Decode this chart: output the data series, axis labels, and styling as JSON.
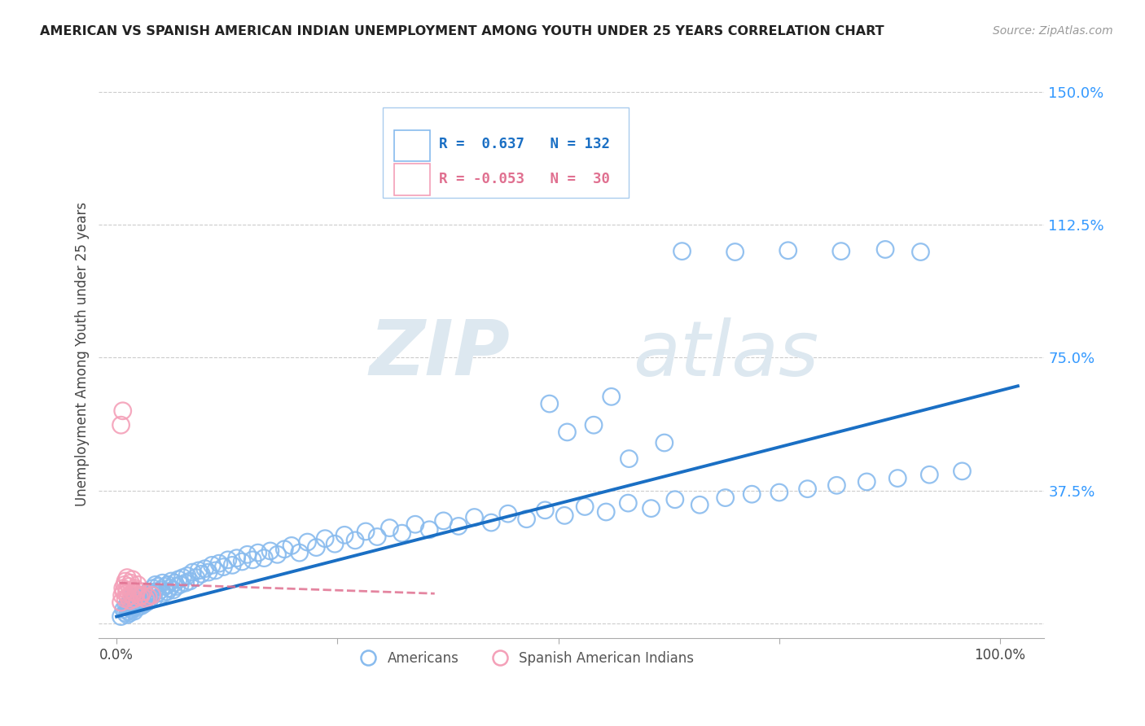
{
  "title": "AMERICAN VS SPANISH AMERICAN INDIAN UNEMPLOYMENT AMONG YOUTH UNDER 25 YEARS CORRELATION CHART",
  "source": "Source: ZipAtlas.com",
  "ylabel": "Unemployment Among Youth under 25 years",
  "watermark_zip": "ZIP",
  "watermark_atlas": "atlas",
  "blue_color": "#88bbee",
  "pink_color": "#f4a0b8",
  "line_blue": "#1a6fc4",
  "line_pink": "#e07090",
  "tick_color": "#3399ff",
  "ytick_values": [
    0.0,
    0.375,
    0.75,
    1.125,
    1.5
  ],
  "ytick_labels": [
    "",
    "37.5%",
    "75.0%",
    "112.5%",
    "150.0%"
  ],
  "xlim": [
    -0.02,
    1.05
  ],
  "ylim": [
    -0.04,
    1.56
  ],
  "blue_line_x": [
    0.0,
    1.02
  ],
  "blue_line_y": [
    0.02,
    0.67
  ],
  "pink_line_x": [
    0.003,
    0.36
  ],
  "pink_line_y": [
    0.115,
    0.085
  ],
  "am_x": [
    0.005,
    0.008,
    0.01,
    0.011,
    0.012,
    0.013,
    0.013,
    0.014,
    0.015,
    0.015,
    0.016,
    0.017,
    0.018,
    0.018,
    0.019,
    0.02,
    0.02,
    0.021,
    0.022,
    0.022,
    0.023,
    0.024,
    0.025,
    0.026,
    0.027,
    0.028,
    0.028,
    0.029,
    0.03,
    0.031,
    0.032,
    0.033,
    0.034,
    0.035,
    0.036,
    0.037,
    0.038,
    0.04,
    0.041,
    0.042,
    0.043,
    0.044,
    0.046,
    0.047,
    0.048,
    0.05,
    0.052,
    0.053,
    0.055,
    0.057,
    0.058,
    0.06,
    0.062,
    0.064,
    0.066,
    0.068,
    0.07,
    0.072,
    0.075,
    0.078,
    0.08,
    0.083,
    0.086,
    0.09,
    0.093,
    0.096,
    0.1,
    0.104,
    0.108,
    0.112,
    0.116,
    0.121,
    0.126,
    0.131,
    0.136,
    0.142,
    0.148,
    0.154,
    0.16,
    0.167,
    0.174,
    0.182,
    0.19,
    0.198,
    0.207,
    0.216,
    0.226,
    0.236,
    0.247,
    0.258,
    0.27,
    0.282,
    0.295,
    0.309,
    0.323,
    0.338,
    0.354,
    0.37,
    0.387,
    0.405,
    0.424,
    0.443,
    0.464,
    0.485,
    0.507,
    0.53,
    0.554,
    0.579,
    0.605,
    0.632,
    0.66,
    0.689,
    0.719,
    0.75,
    0.782,
    0.815,
    0.849,
    0.884,
    0.92,
    0.957,
    0.64,
    0.7,
    0.76,
    0.82,
    0.87,
    0.91,
    0.54,
    0.49,
    0.56,
    0.51,
    0.62,
    0.58
  ],
  "am_y": [
    0.02,
    0.04,
    0.03,
    0.05,
    0.025,
    0.035,
    0.055,
    0.045,
    0.03,
    0.05,
    0.065,
    0.04,
    0.06,
    0.075,
    0.045,
    0.035,
    0.06,
    0.05,
    0.07,
    0.055,
    0.045,
    0.065,
    0.055,
    0.07,
    0.06,
    0.08,
    0.05,
    0.075,
    0.065,
    0.055,
    0.07,
    0.08,
    0.06,
    0.075,
    0.09,
    0.065,
    0.085,
    0.08,
    0.1,
    0.07,
    0.09,
    0.11,
    0.085,
    0.105,
    0.075,
    0.095,
    0.115,
    0.085,
    0.105,
    0.09,
    0.11,
    0.1,
    0.12,
    0.095,
    0.115,
    0.105,
    0.125,
    0.11,
    0.13,
    0.115,
    0.135,
    0.12,
    0.145,
    0.13,
    0.15,
    0.14,
    0.155,
    0.145,
    0.165,
    0.15,
    0.17,
    0.16,
    0.18,
    0.165,
    0.185,
    0.175,
    0.195,
    0.18,
    0.2,
    0.185,
    0.205,
    0.195,
    0.21,
    0.22,
    0.2,
    0.23,
    0.215,
    0.24,
    0.225,
    0.25,
    0.235,
    0.26,
    0.245,
    0.27,
    0.255,
    0.28,
    0.265,
    0.29,
    0.275,
    0.3,
    0.285,
    0.31,
    0.295,
    0.32,
    0.305,
    0.33,
    0.315,
    0.34,
    0.325,
    0.35,
    0.335,
    0.355,
    0.365,
    0.37,
    0.38,
    0.39,
    0.4,
    0.41,
    0.42,
    0.43,
    1.05,
    1.048,
    1.052,
    1.05,
    1.055,
    1.048,
    0.56,
    0.62,
    0.64,
    0.54,
    0.51,
    0.465
  ],
  "sp_x": [
    0.005,
    0.006,
    0.007,
    0.008,
    0.009,
    0.01,
    0.01,
    0.011,
    0.012,
    0.012,
    0.013,
    0.014,
    0.015,
    0.016,
    0.017,
    0.018,
    0.019,
    0.02,
    0.021,
    0.022,
    0.023,
    0.024,
    0.026,
    0.028,
    0.03,
    0.033,
    0.036,
    0.04,
    0.005,
    0.007
  ],
  "sp_y": [
    0.06,
    0.08,
    0.1,
    0.09,
    0.11,
    0.07,
    0.12,
    0.085,
    0.095,
    0.13,
    0.075,
    0.105,
    0.065,
    0.115,
    0.08,
    0.125,
    0.09,
    0.07,
    0.1,
    0.085,
    0.095,
    0.11,
    0.075,
    0.08,
    0.09,
    0.07,
    0.075,
    0.08,
    0.56,
    0.6
  ]
}
